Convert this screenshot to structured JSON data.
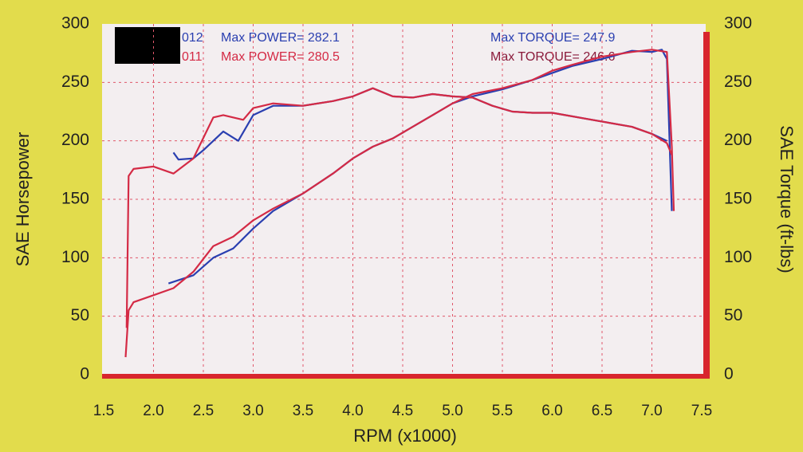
{
  "chart_data": {
    "type": "line",
    "xlabel": "RPM (x1000)",
    "ylabel": "SAE Horsepower",
    "y2label": "SAE Torque (ft-lbs)",
    "xlim": [
      1.5,
      7.5
    ],
    "xticks": [
      {
        "value": 1.5,
        "label": "1.5"
      },
      {
        "value": 2,
        "label": "2.0"
      },
      {
        "value": 2.5,
        "label": "2.5"
      },
      {
        "value": 3,
        "label": "3.0"
      },
      {
        "value": 3.5,
        "label": "3.5"
      },
      {
        "value": 4,
        "label": "4.0"
      },
      {
        "value": 4.5,
        "label": "4.5"
      },
      {
        "value": 5,
        "label": "5.0"
      },
      {
        "value": 5.5,
        "label": "5.5"
      },
      {
        "value": 6,
        "label": "6.0"
      },
      {
        "value": 6.5,
        "label": "6.5"
      },
      {
        "value": 7,
        "label": "7.0"
      },
      {
        "value": 7.5,
        "label": "7.5"
      }
    ],
    "ylim": [
      0,
      300
    ],
    "yticks": [
      0,
      50,
      100,
      150,
      200,
      250,
      300
    ],
    "y2lim": [
      0,
      300
    ],
    "y2ticks": [
      0,
      50,
      100,
      150,
      200,
      250,
      300
    ],
    "grid": true,
    "annotations": [
      "012",
      "011",
      "Max POWER= 282.1",
      "Max POWER= 280.5",
      "Max TORQUE= 247.9",
      "Max TORQUE= 246.6"
    ],
    "series": [
      {
        "name": "012 power",
        "color": "#2a3fb0",
        "x": [
          2.15,
          2.4,
          2.6,
          2.8,
          3.0,
          3.2,
          3.5,
          3.8,
          4.0,
          4.2,
          4.4,
          4.6,
          4.8,
          5.0,
          5.2,
          5.5,
          5.8,
          6.0,
          6.2,
          6.5,
          6.8,
          7.0,
          7.1,
          7.15,
          7.2
        ],
        "values": [
          78,
          85,
          100,
          108,
          125,
          140,
          155,
          172,
          185,
          195,
          202,
          212,
          222,
          232,
          238,
          244,
          252,
          258,
          264,
          270,
          277,
          276,
          278,
          270,
          140
        ]
      },
      {
        "name": "011 power",
        "color": "#d42a45",
        "x": [
          1.72,
          1.75,
          1.8,
          2.0,
          2.2,
          2.4,
          2.6,
          2.8,
          3.0,
          3.2,
          3.5,
          3.8,
          4.0,
          4.2,
          4.4,
          4.6,
          4.8,
          5.0,
          5.2,
          5.5,
          5.8,
          6.0,
          6.2,
          6.5,
          6.8,
          7.0,
          7.15,
          7.2,
          7.22
        ],
        "values": [
          15,
          55,
          62,
          68,
          74,
          88,
          110,
          118,
          132,
          142,
          155,
          172,
          185,
          195,
          202,
          212,
          222,
          232,
          240,
          245,
          252,
          260,
          265,
          272,
          276,
          278,
          276,
          195,
          140
        ]
      },
      {
        "name": "012 torque",
        "color": "#2a3fb0",
        "axis": "y2",
        "x": [
          2.2,
          2.25,
          2.4,
          2.5,
          2.7,
          2.85,
          3.0,
          3.2,
          3.5,
          3.8,
          4.0,
          4.2,
          4.4,
          4.6,
          4.8,
          5.0,
          5.2,
          5.4,
          5.6,
          5.8,
          6.0,
          6.4,
          6.8,
          7.0,
          7.15
        ],
        "values": [
          190,
          184,
          185,
          192,
          208,
          200,
          222,
          230,
          230,
          234,
          238,
          245,
          238,
          237,
          240,
          238,
          237,
          230,
          225,
          224,
          224,
          218,
          212,
          206,
          200
        ]
      },
      {
        "name": "011 torque",
        "color": "#d42a45",
        "axis": "y2",
        "x": [
          1.73,
          1.75,
          1.8,
          2.0,
          2.2,
          2.4,
          2.6,
          2.7,
          2.9,
          3.0,
          3.2,
          3.5,
          3.8,
          4.0,
          4.2,
          4.4,
          4.6,
          4.8,
          5.0,
          5.2,
          5.4,
          5.6,
          5.8,
          6.0,
          6.4,
          6.8,
          7.0,
          7.15,
          7.2
        ],
        "values": [
          40,
          170,
          176,
          178,
          172,
          185,
          220,
          222,
          218,
          228,
          232,
          230,
          234,
          238,
          245,
          238,
          237,
          240,
          238,
          237,
          230,
          225,
          224,
          224,
          218,
          212,
          206,
          198,
          188
        ]
      }
    ]
  }
}
